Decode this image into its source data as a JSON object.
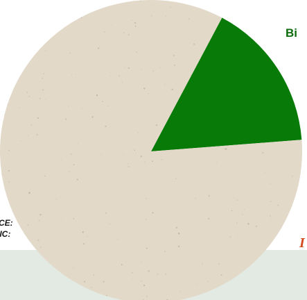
{
  "chart_data": {
    "type": "pie",
    "slices": [
      {
        "label": "Bi",
        "value": 16,
        "color": "#087a08"
      },
      {
        "label": "",
        "value": 84,
        "color": "#e2d9c9"
      }
    ]
  },
  "left_labels": [
    "CE:",
    "IIC:"
  ],
  "right_mark": "I",
  "colors": {
    "background_band": "#e3eae3",
    "texture_speck": "#9a9080"
  }
}
